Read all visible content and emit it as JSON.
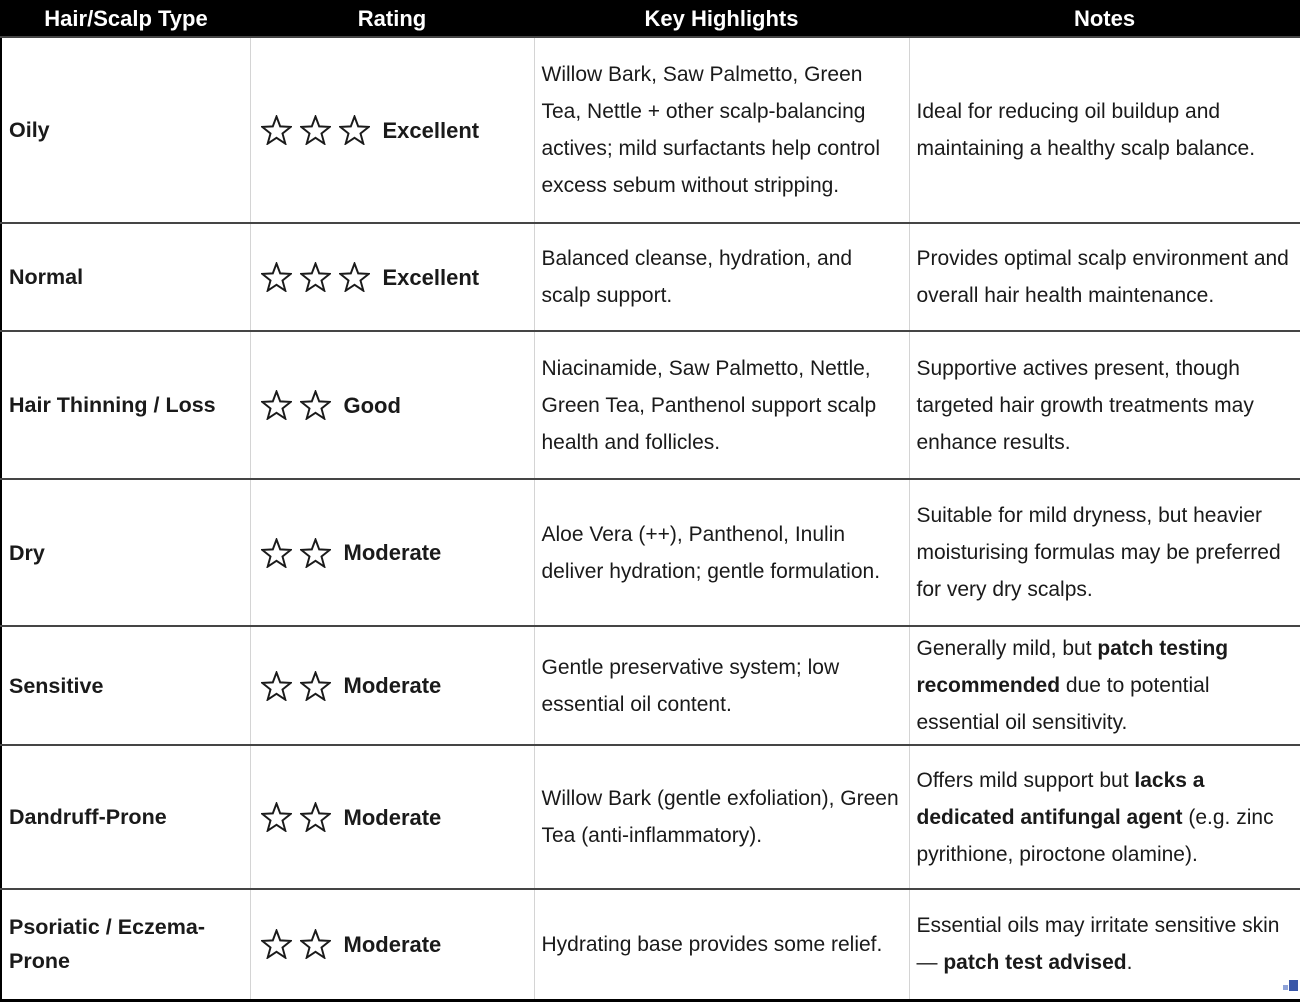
{
  "colors": {
    "header_bg": "#000000",
    "header_text": "#ffffff",
    "body_text": "#1a1a1a",
    "row_border": "#454545",
    "column_border": "#d4d4d4",
    "outer_border": "#000000",
    "resize_handle_dark_blue": "#3a57a8",
    "resize_handle_light_blue": "#8fa3d9"
  },
  "icons": {
    "star": "star-outline-icon",
    "resize_handle": "table-resize-handle-icon"
  },
  "table": {
    "columns": [
      {
        "id": "hair-scalp-type",
        "label": "Hair/Scalp Type"
      },
      {
        "id": "rating",
        "label": "Rating"
      },
      {
        "id": "key-highlights",
        "label": "Key Highlights"
      },
      {
        "id": "notes",
        "label": "Notes"
      }
    ],
    "rows": [
      {
        "type": "Oily",
        "stars": 3,
        "rating_label": "Excellent",
        "highlights": [
          {
            "text": "Willow Bark, Saw Palmetto, Green Tea, Nettle + other scalp-balancing actives; mild surfactants help control excess sebum without stripping.",
            "bold": false
          }
        ],
        "notes": [
          {
            "text": "Ideal for reducing oil buildup and maintaining a healthy scalp balance.",
            "bold": false
          }
        ]
      },
      {
        "type": "Normal",
        "stars": 3,
        "rating_label": "Excellent",
        "highlights": [
          {
            "text": "Balanced cleanse, hydration, and scalp support.",
            "bold": false
          }
        ],
        "notes": [
          {
            "text": "Provides optimal scalp environment and overall hair health maintenance.",
            "bold": false
          }
        ]
      },
      {
        "type": "Hair Thinning / Loss",
        "stars": 2,
        "rating_label": "Good",
        "highlights": [
          {
            "text": "Niacinamide, Saw Palmetto, Nettle, Green Tea, Panthenol support scalp health and follicles.",
            "bold": false
          }
        ],
        "notes": [
          {
            "text": "Supportive actives present, though targeted hair growth treatments may enhance results.",
            "bold": false
          }
        ]
      },
      {
        "type": "Dry",
        "stars": 2,
        "rating_label": "Moderate",
        "highlights": [
          {
            "text": "Aloe Vera (++), Panthenol, Inulin deliver hydration; gentle formulation.",
            "bold": false
          }
        ],
        "notes": [
          {
            "text": "Suitable for mild dryness, but heavier moisturising formulas may be preferred for very dry scalps.",
            "bold": false
          }
        ]
      },
      {
        "type": "Sensitive",
        "stars": 2,
        "rating_label": "Moderate",
        "highlights": [
          {
            "text": "Gentle preservative system; low essential oil content.",
            "bold": false
          }
        ],
        "notes": [
          {
            "text": "Generally mild, but ",
            "bold": false
          },
          {
            "text": "patch testing recommended",
            "bold": true
          },
          {
            "text": " due to potential essential oil sensitivity.",
            "bold": false
          }
        ]
      },
      {
        "type": "Dandruff-Prone",
        "stars": 2,
        "rating_label": "Moderate",
        "highlights": [
          {
            "text": "Willow Bark (gentle exfoliation), Green Tea (anti-inflammatory).",
            "bold": false
          }
        ],
        "notes": [
          {
            "text": "Offers mild support but ",
            "bold": false
          },
          {
            "text": "lacks a dedicated antifungal agent",
            "bold": true
          },
          {
            "text": " (e.g. zinc pyrithione, piroctone olamine).",
            "bold": false
          }
        ]
      },
      {
        "type": "Psoriatic / Eczema-Prone",
        "stars": 2,
        "rating_label": "Moderate",
        "highlights": [
          {
            "text": "Hydrating base provides some relief.",
            "bold": false
          }
        ],
        "notes": [
          {
            "text": "Essential oils may irritate sensitive skin — ",
            "bold": false
          },
          {
            "text": "patch test advised",
            "bold": true
          },
          {
            "text": ".",
            "bold": false
          }
        ]
      }
    ]
  }
}
